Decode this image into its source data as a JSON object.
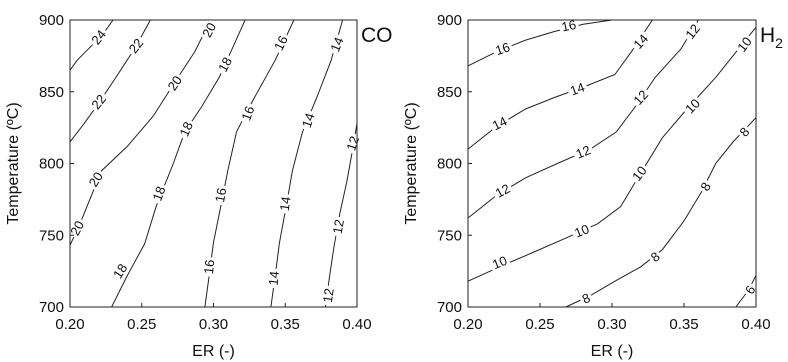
{
  "chart_data": [
    {
      "type": "contour",
      "title": "CO",
      "title_subscript": "",
      "xlabel": "ER (-)",
      "ylabel": "Temperature (ºC)",
      "xlim": [
        0.2,
        0.4
      ],
      "ylim": [
        700,
        900
      ],
      "xticks": [
        "0.20",
        "0.25",
        "0.30",
        "0.35",
        "0.40"
      ],
      "yticks": [
        "700",
        "750",
        "800",
        "850",
        "900"
      ],
      "contours": [
        {
          "level": 24,
          "points": [
            [
              0.2,
              865
            ],
            [
              0.205,
              872
            ],
            [
              0.215,
              882
            ],
            [
              0.225,
              893
            ],
            [
              0.23,
              900
            ]
          ],
          "labels": [
            {
              "x": 0.22,
              "y": 888,
              "text": "24",
              "angle": -52
            }
          ]
        },
        {
          "level": 22,
          "points": [
            [
              0.2,
              815
            ],
            [
              0.21,
              828
            ],
            [
              0.22,
              842
            ],
            [
              0.232,
              860
            ],
            [
              0.245,
              880
            ],
            [
              0.256,
              900
            ]
          ],
          "labels": [
            {
              "x": 0.22,
              "y": 843,
              "text": "22",
              "angle": -52
            },
            {
              "x": 0.246,
              "y": 882,
              "text": "22",
              "angle": -52
            }
          ]
        },
        {
          "level": 20,
          "points": [
            [
              0.2,
              743
            ],
            [
              0.207,
              758
            ],
            [
              0.213,
              773
            ],
            [
              0.222,
              795
            ],
            [
              0.24,
              812
            ],
            [
              0.258,
              833
            ],
            [
              0.272,
              855
            ],
            [
              0.287,
              878
            ],
            [
              0.298,
              900
            ]
          ],
          "labels": [
            {
              "x": 0.205,
              "y": 755,
              "text": "20",
              "angle": -62
            },
            {
              "x": 0.218,
              "y": 789,
              "text": "20",
              "angle": -58
            },
            {
              "x": 0.273,
              "y": 856,
              "text": "20",
              "angle": -56
            },
            {
              "x": 0.297,
              "y": 893,
              "text": "20",
              "angle": -62
            }
          ]
        },
        {
          "level": 18,
          "points": [
            [
              0.229,
              700
            ],
            [
              0.24,
              722
            ],
            [
              0.252,
              744
            ],
            [
              0.26,
              770
            ],
            [
              0.272,
              800
            ],
            [
              0.28,
              822
            ],
            [
              0.292,
              840
            ],
            [
              0.304,
              860
            ],
            [
              0.313,
              880
            ],
            [
              0.322,
              900
            ]
          ],
          "labels": [
            {
              "x": 0.235,
              "y": 725,
              "text": "18",
              "angle": -58
            },
            {
              "x": 0.262,
              "y": 779,
              "text": "18",
              "angle": -70
            },
            {
              "x": 0.281,
              "y": 824,
              "text": "18",
              "angle": -66
            },
            {
              "x": 0.308,
              "y": 869,
              "text": "18",
              "angle": -62
            }
          ]
        },
        {
          "level": 16,
          "points": [
            [
              0.294,
              700
            ],
            [
              0.297,
              722
            ],
            [
              0.3,
              745
            ],
            [
              0.305,
              770
            ],
            [
              0.31,
              795
            ],
            [
              0.316,
              822
            ],
            [
              0.328,
              845
            ],
            [
              0.343,
              872
            ],
            [
              0.356,
              900
            ]
          ],
          "labels": [
            {
              "x": 0.297,
              "y": 728,
              "text": "16",
              "angle": -84
            },
            {
              "x": 0.305,
              "y": 778,
              "text": "16",
              "angle": -80
            },
            {
              "x": 0.324,
              "y": 835,
              "text": "16",
              "angle": -70
            },
            {
              "x": 0.347,
              "y": 884,
              "text": "16",
              "angle": -64
            }
          ]
        },
        {
          "level": 14,
          "points": [
            [
              0.34,
              700
            ],
            [
              0.343,
              722
            ],
            [
              0.346,
              745
            ],
            [
              0.351,
              772
            ],
            [
              0.355,
              795
            ],
            [
              0.362,
              822
            ],
            [
              0.372,
              846
            ],
            [
              0.382,
              872
            ],
            [
              0.39,
              900
            ]
          ],
          "labels": [
            {
              "x": 0.342,
              "y": 720,
              "text": "14",
              "angle": -84
            },
            {
              "x": 0.35,
              "y": 772,
              "text": "14",
              "angle": -82
            },
            {
              "x": 0.366,
              "y": 830,
              "text": "14",
              "angle": -72
            },
            {
              "x": 0.386,
              "y": 883,
              "text": "14",
              "angle": -68
            }
          ]
        },
        {
          "level": 12,
          "points": [
            [
              0.378,
              700
            ],
            [
              0.381,
              722
            ],
            [
              0.384,
              742
            ],
            [
              0.388,
              765
            ],
            [
              0.393,
              788
            ],
            [
              0.397,
              810
            ],
            [
              0.4,
              828
            ]
          ],
          "labels": [
            {
              "x": 0.38,
              "y": 708,
              "text": "12",
              "angle": -82
            },
            {
              "x": 0.387,
              "y": 756,
              "text": "12",
              "angle": -80
            },
            {
              "x": 0.397,
              "y": 814,
              "text": "12",
              "angle": -72
            }
          ]
        }
      ]
    },
    {
      "type": "contour",
      "title": "H",
      "title_subscript": "2",
      "xlabel": "ER (-)",
      "ylabel": "Temperature (ºC)",
      "xlim": [
        0.2,
        0.4
      ],
      "ylim": [
        700,
        900
      ],
      "xticks": [
        "0.20",
        "0.25",
        "0.30",
        "0.35",
        "0.40"
      ],
      "yticks": [
        "700",
        "750",
        "800",
        "850",
        "900"
      ],
      "contours": [
        {
          "level": 16,
          "points": [
            [
              0.2,
              868
            ],
            [
              0.22,
              878
            ],
            [
              0.24,
              886
            ],
            [
              0.26,
              892
            ],
            [
              0.28,
              897
            ],
            [
              0.3,
              900
            ]
          ],
          "labels": [
            {
              "x": 0.224,
              "y": 880,
              "text": "16",
              "angle": -18
            },
            {
              "x": 0.27,
              "y": 896,
              "text": "16",
              "angle": -12
            }
          ]
        },
        {
          "level": 14,
          "points": [
            [
              0.2,
              810
            ],
            [
              0.22,
              826
            ],
            [
              0.24,
              838
            ],
            [
              0.26,
              846
            ],
            [
              0.282,
              854
            ],
            [
              0.302,
              862
            ],
            [
              0.315,
              880
            ],
            [
              0.328,
              900
            ]
          ],
          "labels": [
            {
              "x": 0.222,
              "y": 828,
              "text": "14",
              "angle": -26
            },
            {
              "x": 0.276,
              "y": 852,
              "text": "14",
              "angle": -20
            },
            {
              "x": 0.32,
              "y": 885,
              "text": "14",
              "angle": -48
            }
          ]
        },
        {
          "level": 12,
          "points": [
            [
              0.2,
              762
            ],
            [
              0.22,
              778
            ],
            [
              0.24,
              790
            ],
            [
              0.262,
              800
            ],
            [
              0.285,
              810
            ],
            [
              0.303,
              822
            ],
            [
              0.315,
              838
            ],
            [
              0.33,
              860
            ],
            [
              0.348,
              880
            ],
            [
              0.36,
              900
            ]
          ],
          "labels": [
            {
              "x": 0.224,
              "y": 781,
              "text": "12",
              "angle": -28
            },
            {
              "x": 0.28,
              "y": 808,
              "text": "12",
              "angle": -22
            },
            {
              "x": 0.32,
              "y": 846,
              "text": "12",
              "angle": -48
            },
            {
              "x": 0.356,
              "y": 892,
              "text": "12",
              "angle": -52
            }
          ]
        },
        {
          "level": 10,
          "points": [
            [
              0.2,
              718
            ],
            [
              0.222,
              728
            ],
            [
              0.245,
              738
            ],
            [
              0.268,
              748
            ],
            [
              0.29,
              758
            ],
            [
              0.306,
              770
            ],
            [
              0.318,
              790
            ],
            [
              0.335,
              818
            ],
            [
              0.352,
              838
            ],
            [
              0.372,
              860
            ],
            [
              0.388,
              880
            ],
            [
              0.4,
              895
            ]
          ],
          "labels": [
            {
              "x": 0.222,
              "y": 731,
              "text": "10",
              "angle": -22
            },
            {
              "x": 0.279,
              "y": 753,
              "text": "10",
              "angle": -22
            },
            {
              "x": 0.319,
              "y": 793,
              "text": "10",
              "angle": -52
            },
            {
              "x": 0.356,
              "y": 840,
              "text": "10",
              "angle": -46
            },
            {
              "x": 0.392,
              "y": 883,
              "text": "10",
              "angle": -52
            }
          ]
        },
        {
          "level": 8,
          "points": [
            [
              0.268,
              700
            ],
            [
              0.285,
              708
            ],
            [
              0.302,
              718
            ],
            [
              0.32,
              728
            ],
            [
              0.335,
              740
            ],
            [
              0.35,
              760
            ],
            [
              0.362,
              780
            ],
            [
              0.372,
              800
            ],
            [
              0.384,
              815
            ],
            [
              0.4,
              832
            ]
          ],
          "labels": [
            {
              "x": 0.282,
              "y": 706,
              "text": "8",
              "angle": -24
            },
            {
              "x": 0.33,
              "y": 735,
              "text": "8",
              "angle": -38
            },
            {
              "x": 0.365,
              "y": 784,
              "text": "8",
              "angle": -58
            },
            {
              "x": 0.392,
              "y": 822,
              "text": "8",
              "angle": -48
            }
          ]
        },
        {
          "level": 6,
          "points": [
            [
              0.386,
              700
            ],
            [
              0.392,
              708
            ],
            [
              0.396,
              714
            ],
            [
              0.4,
              722
            ]
          ],
          "labels": [
            {
              "x": 0.396,
              "y": 712,
              "text": "6",
              "angle": -58
            }
          ]
        }
      ]
    }
  ]
}
